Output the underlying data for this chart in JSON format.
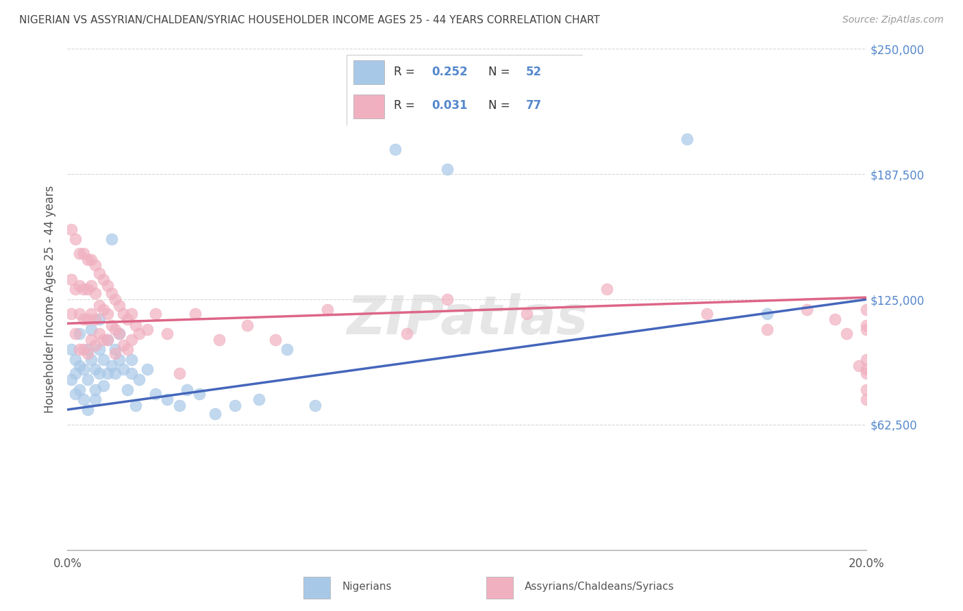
{
  "title": "NIGERIAN VS ASSYRIAN/CHALDEAN/SYRIAC HOUSEHOLDER INCOME AGES 25 - 44 YEARS CORRELATION CHART",
  "source": "Source: ZipAtlas.com",
  "ylabel": "Householder Income Ages 25 - 44 years",
  "xlim": [
    0,
    0.2
  ],
  "ylim": [
    0,
    250000
  ],
  "yticks": [
    0,
    62500,
    125000,
    187500,
    250000
  ],
  "ytick_labels": [
    "",
    "$62,500",
    "$125,000",
    "$187,500",
    "$250,000"
  ],
  "xticks": [
    0.0,
    0.04,
    0.08,
    0.12,
    0.16,
    0.2
  ],
  "xtick_labels": [
    "0.0%",
    "",
    "",
    "",
    "",
    "20.0%"
  ],
  "watermark": "ZIPatlas",
  "blue_color": "#A8C8E8",
  "pink_color": "#F0B0C0",
  "blue_line_color": "#4466BB",
  "pink_line_color": "#DD6688",
  "axis_label_color": "#5588CC",
  "title_color": "#444444",
  "grid_color": "#CCCCCC",
  "background_color": "#FFFFFF",
  "blue_line_x0": 0.0,
  "blue_line_y0": 70000,
  "blue_line_x1": 0.2,
  "blue_line_y1": 125000,
  "pink_line_x0": 0.0,
  "pink_line_y0": 113000,
  "pink_line_x1": 0.2,
  "pink_line_y1": 126000,
  "nigerians_x": [
    0.001,
    0.001,
    0.002,
    0.002,
    0.002,
    0.003,
    0.003,
    0.003,
    0.004,
    0.004,
    0.005,
    0.005,
    0.005,
    0.006,
    0.006,
    0.007,
    0.007,
    0.007,
    0.008,
    0.008,
    0.008,
    0.009,
    0.009,
    0.01,
    0.01,
    0.011,
    0.011,
    0.012,
    0.012,
    0.013,
    0.013,
    0.014,
    0.015,
    0.016,
    0.016,
    0.017,
    0.018,
    0.02,
    0.022,
    0.025,
    0.028,
    0.03,
    0.033,
    0.037,
    0.042,
    0.048,
    0.055,
    0.062,
    0.082,
    0.095,
    0.155,
    0.175
  ],
  "nigerians_y": [
    85000,
    100000,
    88000,
    95000,
    78000,
    92000,
    108000,
    80000,
    90000,
    75000,
    100000,
    85000,
    70000,
    95000,
    110000,
    80000,
    90000,
    75000,
    88000,
    100000,
    115000,
    82000,
    95000,
    88000,
    105000,
    92000,
    155000,
    88000,
    100000,
    95000,
    108000,
    90000,
    80000,
    88000,
    95000,
    72000,
    85000,
    90000,
    78000,
    75000,
    72000,
    80000,
    78000,
    68000,
    72000,
    75000,
    100000,
    72000,
    200000,
    190000,
    205000,
    118000
  ],
  "assyrian_x": [
    0.001,
    0.001,
    0.001,
    0.002,
    0.002,
    0.002,
    0.003,
    0.003,
    0.003,
    0.003,
    0.004,
    0.004,
    0.004,
    0.004,
    0.005,
    0.005,
    0.005,
    0.005,
    0.006,
    0.006,
    0.006,
    0.006,
    0.007,
    0.007,
    0.007,
    0.007,
    0.008,
    0.008,
    0.008,
    0.009,
    0.009,
    0.009,
    0.01,
    0.01,
    0.01,
    0.011,
    0.011,
    0.012,
    0.012,
    0.012,
    0.013,
    0.013,
    0.014,
    0.014,
    0.015,
    0.015,
    0.016,
    0.016,
    0.017,
    0.018,
    0.02,
    0.022,
    0.025,
    0.028,
    0.032,
    0.038,
    0.045,
    0.052,
    0.065,
    0.085,
    0.095,
    0.115,
    0.135,
    0.16,
    0.175,
    0.185,
    0.192,
    0.195,
    0.198,
    0.2,
    0.2,
    0.2,
    0.2,
    0.2,
    0.2,
    0.2,
    0.2
  ],
  "assyrian_y": [
    160000,
    135000,
    118000,
    155000,
    130000,
    108000,
    148000,
    132000,
    118000,
    100000,
    148000,
    130000,
    115000,
    100000,
    145000,
    130000,
    115000,
    98000,
    145000,
    132000,
    118000,
    105000,
    142000,
    128000,
    115000,
    102000,
    138000,
    122000,
    108000,
    135000,
    120000,
    105000,
    132000,
    118000,
    105000,
    128000,
    112000,
    125000,
    110000,
    98000,
    122000,
    108000,
    118000,
    102000,
    115000,
    100000,
    118000,
    105000,
    112000,
    108000,
    110000,
    118000,
    108000,
    88000,
    118000,
    105000,
    112000,
    105000,
    120000,
    108000,
    125000,
    118000,
    130000,
    118000,
    110000,
    120000,
    115000,
    108000,
    92000,
    110000,
    95000,
    88000,
    120000,
    80000,
    112000,
    90000,
    75000
  ]
}
